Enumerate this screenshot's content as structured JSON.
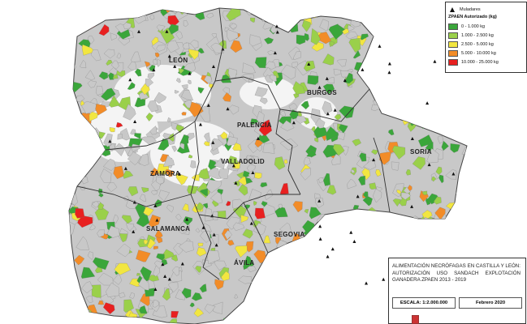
{
  "map": {
    "regions": [
      {
        "name": "LEÓN"
      },
      {
        "name": "PALENCIA"
      },
      {
        "name": "BURGOS"
      },
      {
        "name": "SORIA"
      },
      {
        "name": "ZAMORA"
      },
      {
        "name": "VALLADOLID"
      },
      {
        "name": "SALAMANCA"
      },
      {
        "name": "SEGOVIA"
      },
      {
        "name": "ÁVILA"
      }
    ],
    "category_colors": {
      "cat0": "#3aa63a",
      "cat1": "#9ad04a",
      "cat2": "#f2e640",
      "cat3": "#f28c28",
      "cat4": "#e82020",
      "none": "#c8c8c8",
      "unused": "#f4f4f4"
    }
  },
  "legend": {
    "marker_label": "Muladares",
    "heading": "ZPAEN Autorizado (kg)",
    "items": [
      {
        "label": "0 - 1.000 kg",
        "color": "#3aa63a"
      },
      {
        "label": "1.000 - 2.500 kg",
        "color": "#9ad04a"
      },
      {
        "label": "2.500 - 5.000 kg",
        "color": "#f2e640"
      },
      {
        "label": "5.000 - 10.000 kg",
        "color": "#f28c28"
      },
      {
        "label": "10.000 - 25.000 kg",
        "color": "#e82020"
      }
    ]
  },
  "info": {
    "title": "ALIMENTACIÓN NECRÓFAGAS EN CASTILLA Y LEÓN: AUTORIZACIÓN USO SANDACH EXPLOTACIÓN GANADERA ZPAEN 2013 - 2019",
    "scale": "ESCALA: 1:2.000.000",
    "date": "Febrero 2020"
  }
}
